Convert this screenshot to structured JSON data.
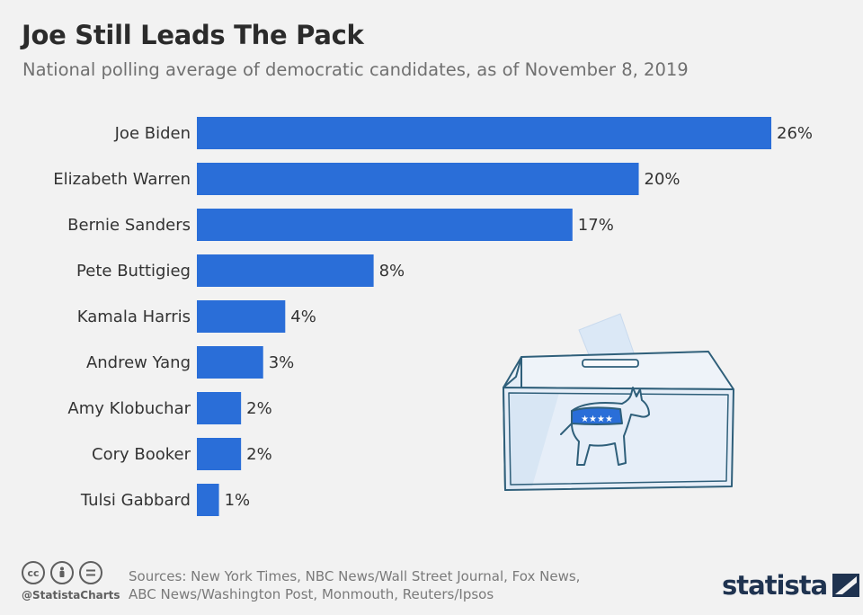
{
  "title": "Joe Still Leads The Pack",
  "subtitle": "National polling average of democratic candidates, as of November 8, 2019",
  "chart_data": {
    "type": "bar",
    "orientation": "horizontal",
    "title": "Joe Still Leads The Pack",
    "subtitle": "National polling average of democratic candidates, as of November 8, 2019",
    "categories": [
      "Joe Biden",
      "Elizabeth Warren",
      "Bernie Sanders",
      "Pete Buttigieg",
      "Kamala Harris",
      "Andrew Yang",
      "Amy Klobuchar",
      "Cory Booker",
      "Tulsi Gabbard"
    ],
    "values": [
      26,
      20,
      17,
      8,
      4,
      3,
      2,
      2,
      1
    ],
    "value_labels": [
      "26%",
      "20%",
      "17%",
      "8%",
      "4%",
      "3%",
      "2%",
      "2%",
      "1%"
    ],
    "unit": "%",
    "xlim": [
      0,
      26
    ],
    "grid": false,
    "legend": "none",
    "bar_color": "#2a6ed8"
  },
  "footer": {
    "handle": "@StatistaCharts",
    "sources_line1": "Sources: New York Times, NBC News/Wall Street Journal, Fox News,",
    "sources_line2": "ABC News/Washington Post, Monmouth, Reuters/Ipsos",
    "brand": "statista",
    "cc_icons": [
      "cc-icon",
      "attribution-icon",
      "no-derivatives-icon"
    ]
  },
  "colors": {
    "background": "#f2f2f2",
    "bar": "#2a6ed8",
    "title": "#2b2b2b",
    "subtitle": "#707070",
    "illustration_line": "#2f5f7a",
    "illustration_fill": "#dbe8f6",
    "brand": "#1f3350"
  },
  "illustration": {
    "icon": "ballot-box-donkey-icon"
  }
}
